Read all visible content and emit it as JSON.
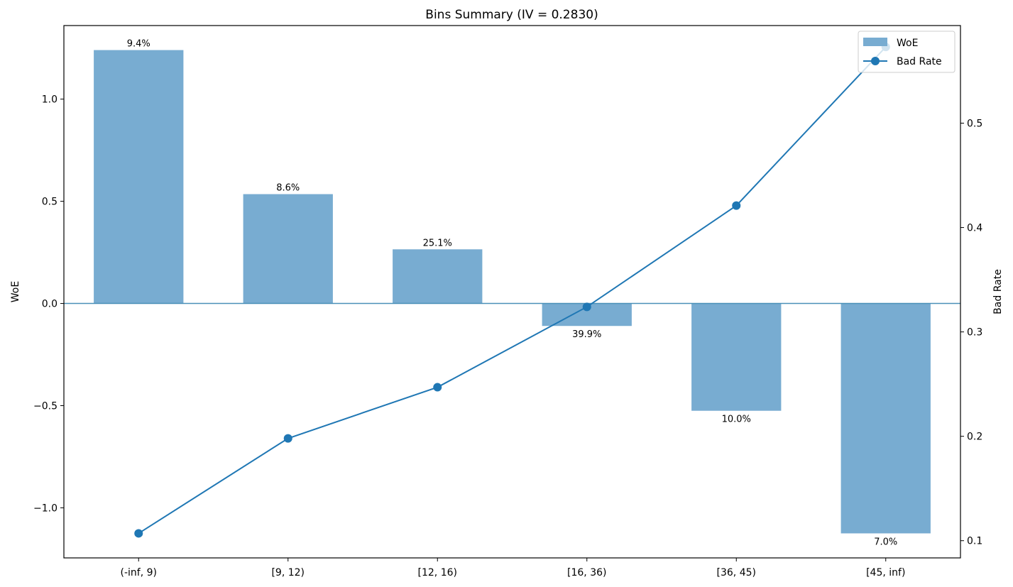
{
  "chart_data": {
    "type": "bar",
    "title": "Bins Summary (IV = 0.2830)",
    "categories": [
      "(-inf, 9)",
      "[9, 12)",
      "[12, 16)",
      "[16, 36)",
      "[36, 45)",
      "[45, inf)"
    ],
    "woe": [
      1.24,
      0.535,
      0.265,
      -0.11,
      -0.525,
      -1.125
    ],
    "bar_labels": [
      "9.4%",
      "8.6%",
      "25.1%",
      "39.9%",
      "10.0%",
      "7.0%"
    ],
    "bad_rate": [
      0.107,
      0.198,
      0.247,
      0.324,
      0.421,
      0.573
    ],
    "ylabel_left": "WoE",
    "ylabel_right": "Bad Rate",
    "ylim_left": [
      -1.245,
      1.36
    ],
    "ylim_right": [
      0.0835,
      0.5935
    ],
    "yticks_left": [
      1.0,
      0.5,
      0.0,
      -0.5,
      -1.0
    ],
    "yticks_left_labels": [
      "1.0",
      "0.5",
      "0.0",
      "−0.5",
      "−1.0"
    ],
    "yticks_right": [
      0.5,
      0.4,
      0.3,
      0.2,
      0.1
    ],
    "yticks_right_labels": [
      "0.5",
      "0.4",
      "0.3",
      "0.2",
      "0.1"
    ],
    "legend": {
      "position": "top-right",
      "entries": [
        {
          "label": "WoE",
          "kind": "bar"
        },
        {
          "label": "Bad Rate",
          "kind": "line"
        }
      ]
    },
    "zero_line": true,
    "grid": false,
    "colors": {
      "bar": "#78acd1",
      "line": "#1f77b4",
      "zero_line": "#4a90b8"
    }
  }
}
